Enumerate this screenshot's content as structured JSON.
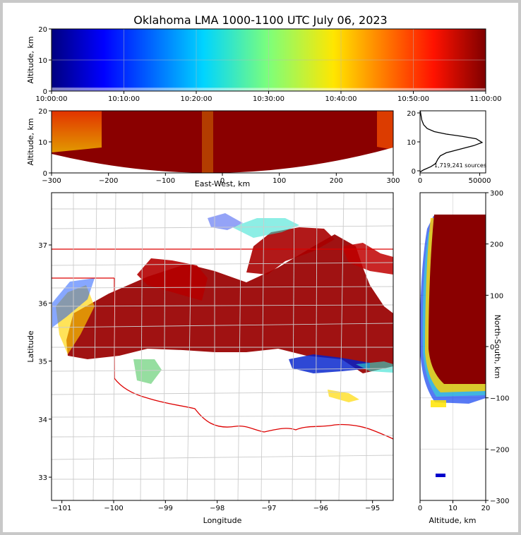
{
  "title": "Oklahoma LMA 1000-1100 UTC July 06, 2023",
  "colors": {
    "frame": "#c8c8c8",
    "state_border": "#dd0000",
    "county_border": "#cccccc",
    "background": "#ffffff"
  },
  "chart_data": [
    {
      "panel": "time-height",
      "type": "scatter",
      "ylabel": "Altitude, km",
      "ylim": [
        0,
        20
      ],
      "yticks": [
        "0",
        "10",
        "20"
      ],
      "xlim": [
        "10:00:00",
        "11:00:00"
      ],
      "xticks": [
        "10:00:00",
        "10:10:00",
        "10:20:00",
        "10:30:00",
        "10:40:00",
        "10:50:00",
        "11:00:00"
      ],
      "colormap": "jet",
      "grid": true
    },
    {
      "panel": "east-west-altitude",
      "type": "scatter",
      "xlabel": "East-West, km",
      "ylabel": "Altitude, km",
      "xlim": [
        -300,
        300
      ],
      "ylim": [
        0,
        20
      ],
      "xticks": [
        "−300",
        "−200",
        "−100",
        "0",
        "100",
        "200",
        "300"
      ],
      "yticks": [
        "0",
        "10",
        "20"
      ],
      "grid": false
    },
    {
      "panel": "altitude-histogram",
      "type": "line",
      "annotation": "1,719,241 sources",
      "xlim": [
        0,
        55000
      ],
      "ylim": [
        0,
        20
      ],
      "xticks": [
        "0",
        "50000"
      ],
      "yticks": [
        "0",
        "10",
        "20"
      ],
      "profile": [
        [
          0,
          0.3
        ],
        [
          3000,
          1.0
        ],
        [
          9000,
          2.0
        ],
        [
          13000,
          3.0
        ],
        [
          15000,
          4.5
        ],
        [
          17000,
          5.5
        ],
        [
          22000,
          6.5
        ],
        [
          32000,
          7.5
        ],
        [
          45000,
          8.8
        ],
        [
          52000,
          9.8
        ],
        [
          47000,
          11.0
        ],
        [
          35000,
          11.8
        ],
        [
          22000,
          12.5
        ],
        [
          12000,
          13.3
        ],
        [
          6000,
          14.3
        ],
        [
          3000,
          15.5
        ],
        [
          1500,
          17.0
        ],
        [
          600,
          19.0
        ],
        [
          200,
          20.0
        ]
      ]
    },
    {
      "panel": "plan-view",
      "type": "scatter",
      "xlabel": "Longitude",
      "ylabel": "Latitude",
      "xlim": [
        -101.2,
        -94.6
      ],
      "ylim": [
        32.6,
        37.9
      ],
      "xticks": [
        "−101",
        "−100",
        "−99",
        "−98",
        "−97",
        "−96",
        "−95"
      ],
      "yticks": [
        "33",
        "34",
        "35",
        "36",
        "37"
      ],
      "grid": false
    },
    {
      "panel": "north-south-altitude",
      "type": "scatter",
      "xlabel": "Altitude, km",
      "ylabel": "North-South, km",
      "xlim": [
        0,
        20
      ],
      "ylim": [
        -300,
        300
      ],
      "xticks": [
        "0",
        "10",
        "20"
      ],
      "yticks": [
        "−300",
        "−200",
        "−100",
        "0",
        "100",
        "200",
        "300"
      ],
      "grid": true
    }
  ]
}
